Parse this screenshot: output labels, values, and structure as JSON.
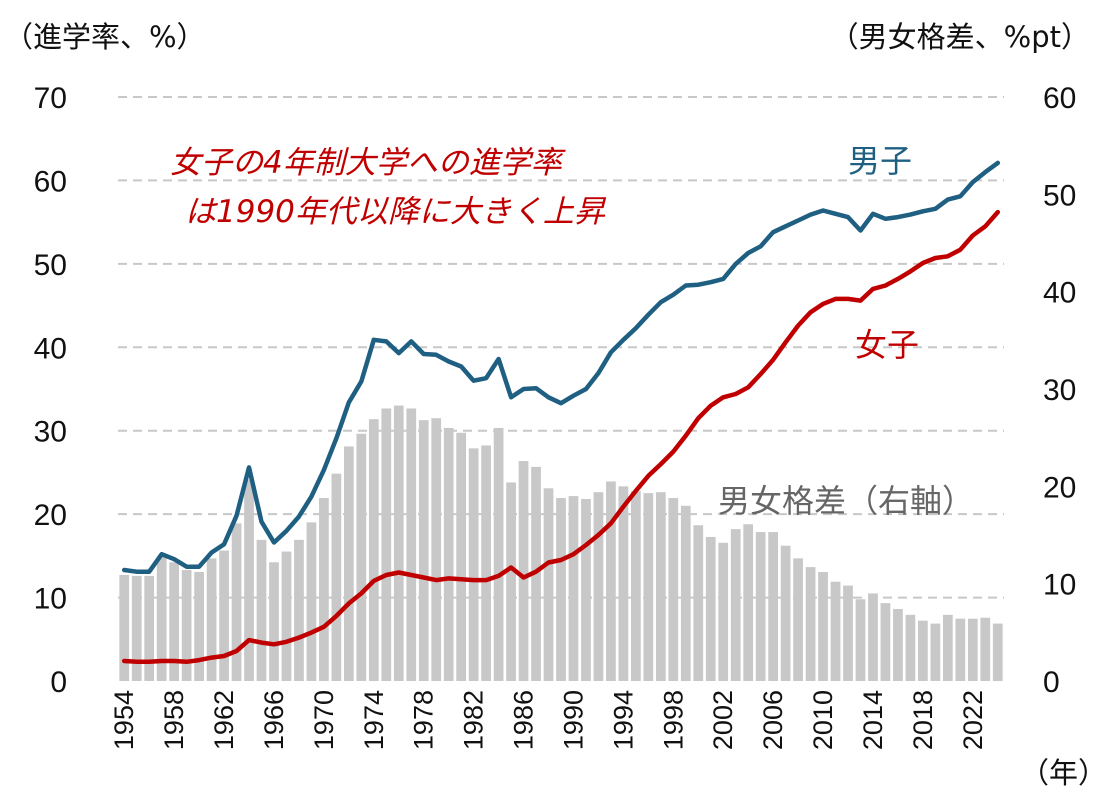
{
  "chart_data": {
    "type": "bar+line",
    "left_axis_label": "（進学率、%）",
    "right_axis_label": "（男女格差、%pt）",
    "x_unit_label": "（年）",
    "annotation_lines": [
      "女子の4年制大学への進学率",
      "は1990年代以降に大きく上昇"
    ],
    "left_ylim": [
      0,
      70
    ],
    "left_ticks": [
      0,
      10,
      20,
      30,
      40,
      50,
      60,
      70
    ],
    "right_ylim": [
      0,
      60
    ],
    "right_ticks": [
      0,
      10,
      20,
      30,
      40,
      50,
      60
    ],
    "x_tick_labels": [
      "1954",
      "1958",
      "1962",
      "1966",
      "1970",
      "1974",
      "1978",
      "1982",
      "1986",
      "1990",
      "1994",
      "1998",
      "2002",
      "2006",
      "2010",
      "2014",
      "2018",
      "2022"
    ],
    "grid": true,
    "years": [
      1954,
      1955,
      1956,
      1957,
      1958,
      1959,
      1960,
      1961,
      1962,
      1963,
      1964,
      1965,
      1966,
      1967,
      1968,
      1969,
      1970,
      1971,
      1972,
      1973,
      1974,
      1975,
      1976,
      1977,
      1978,
      1979,
      1980,
      1981,
      1982,
      1983,
      1984,
      1985,
      1986,
      1987,
      1988,
      1989,
      1990,
      1991,
      1992,
      1993,
      1994,
      1995,
      1996,
      1997,
      1998,
      1999,
      2000,
      2001,
      2002,
      2003,
      2004,
      2005,
      2006,
      2007,
      2008,
      2009,
      2010,
      2011,
      2012,
      2013,
      2014,
      2015,
      2016,
      2017,
      2018,
      2019,
      2020,
      2021,
      2022,
      2023,
      2024
    ],
    "series": [
      {
        "name": "男子",
        "axis": "left",
        "color": "#1f5f82",
        "values": [
          13.3,
          13.1,
          13.1,
          15.2,
          14.6,
          13.7,
          13.7,
          15.4,
          16.4,
          19.8,
          25.6,
          19.1,
          16.6,
          18.0,
          19.7,
          22.1,
          25.3,
          29.1,
          33.4,
          35.9,
          40.9,
          40.7,
          39.3,
          40.7,
          39.2,
          39.1,
          38.3,
          37.7,
          36.0,
          36.3,
          38.6,
          34.0,
          35.0,
          35.1,
          34.0,
          33.3,
          34.2,
          35.0,
          36.9,
          39.4,
          40.9,
          42.3,
          43.9,
          45.4,
          46.3,
          47.4,
          47.5,
          47.8,
          48.2,
          50.0,
          51.3,
          52.1,
          53.8,
          54.5,
          55.2,
          55.9,
          56.4,
          56.0,
          55.6,
          54.0,
          56.0,
          55.4,
          55.6,
          55.9,
          56.3,
          56.6,
          57.7,
          58.1,
          59.8,
          61.0,
          62.1
        ]
      },
      {
        "name": "女子",
        "axis": "left",
        "color": "#c00000",
        "values": [
          2.4,
          2.3,
          2.3,
          2.4,
          2.4,
          2.3,
          2.5,
          2.8,
          3.0,
          3.6,
          4.9,
          4.6,
          4.4,
          4.7,
          5.2,
          5.8,
          6.5,
          7.8,
          9.3,
          10.5,
          12.0,
          12.7,
          13.0,
          12.7,
          12.4,
          12.1,
          12.3,
          12.2,
          12.1,
          12.1,
          12.6,
          13.6,
          12.4,
          13.1,
          14.2,
          14.5,
          15.2,
          16.3,
          17.5,
          18.9,
          20.9,
          22.8,
          24.6,
          26.0,
          27.5,
          29.4,
          31.5,
          33.0,
          34.0,
          34.4,
          35.2,
          36.8,
          38.5,
          40.6,
          42.6,
          44.2,
          45.2,
          45.8,
          45.8,
          45.6,
          47.0,
          47.4,
          48.2,
          49.1,
          50.1,
          50.7,
          50.9,
          51.7,
          53.4,
          54.5,
          56.2
        ]
      },
      {
        "name": "男女格差（右軸）",
        "axis": "right",
        "type": "bar",
        "color": "#c8c8c8",
        "values": [
          10.9,
          10.8,
          10.8,
          12.8,
          12.2,
          11.4,
          11.2,
          12.6,
          13.4,
          16.2,
          20.7,
          14.5,
          12.2,
          13.3,
          14.5,
          16.3,
          18.8,
          21.3,
          24.1,
          25.4,
          26.9,
          28.0,
          28.3,
          28.0,
          26.8,
          27.0,
          26.0,
          25.5,
          23.9,
          24.2,
          26.0,
          20.4,
          22.6,
          22.0,
          19.8,
          18.8,
          19.0,
          18.7,
          19.4,
          20.5,
          20.0,
          19.5,
          19.3,
          19.4,
          18.8,
          18.0,
          16.0,
          14.8,
          14.2,
          15.6,
          16.1,
          15.3,
          15.3,
          13.9,
          12.6,
          11.7,
          11.2,
          10.2,
          9.8,
          8.4,
          9.0,
          8.0,
          7.4,
          6.8,
          6.2,
          5.9,
          6.8,
          6.4,
          6.4,
          6.5,
          5.9
        ]
      }
    ]
  }
}
